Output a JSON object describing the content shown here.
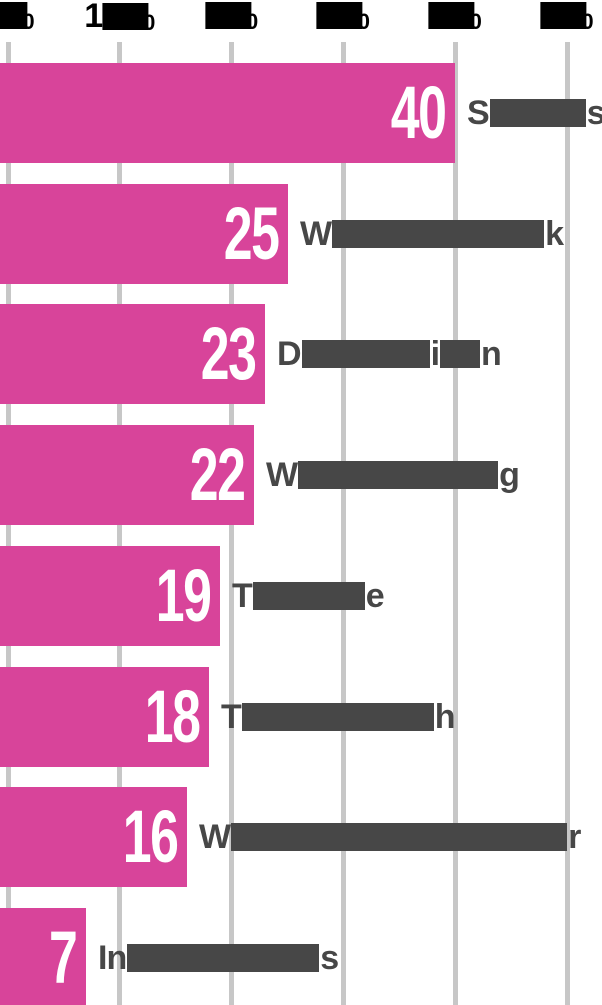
{
  "chart_data": {
    "type": "bar",
    "orientation": "horizontal",
    "grid": true,
    "legend": false,
    "x_axis": {
      "range": [
        0,
        50
      ],
      "ticks": [
        0,
        10,
        20,
        30,
        40,
        50
      ],
      "tick_label_fragments": [
        {
          "pre": "",
          "box": true,
          "suf": "0"
        },
        {
          "pre": "1",
          "box": true,
          "suf": "0"
        },
        {
          "pre": "",
          "box": true,
          "suf": "0"
        },
        {
          "pre": "",
          "box": true,
          "suf": "0"
        },
        {
          "pre": "",
          "box": true,
          "suf": "0"
        },
        {
          "pre": "",
          "box": true,
          "suf": "0"
        }
      ]
    },
    "bars": [
      {
        "value": 40,
        "label_segments": [
          {
            "text": "S"
          },
          {
            "box": 96
          },
          {
            "text": "s"
          }
        ]
      },
      {
        "value": 25,
        "label_segments": [
          {
            "text": "W"
          },
          {
            "box": 212
          },
          {
            "text": "k"
          }
        ]
      },
      {
        "value": 23,
        "label_segments": [
          {
            "text": "D"
          },
          {
            "box": 128
          },
          {
            "text": "i"
          },
          {
            "box": 40
          },
          {
            "text": "n"
          }
        ]
      },
      {
        "value": 22,
        "label_segments": [
          {
            "text": "W"
          },
          {
            "box": 200
          },
          {
            "text": "g"
          }
        ]
      },
      {
        "value": 19,
        "label_segments": [
          {
            "text": "T"
          },
          {
            "box": 112
          },
          {
            "text": "e"
          }
        ]
      },
      {
        "value": 18,
        "label_segments": [
          {
            "text": "T"
          },
          {
            "box": 192
          },
          {
            "text": "h"
          }
        ]
      },
      {
        "value": 16,
        "label_segments": [
          {
            "text": "W"
          },
          {
            "box": 336
          },
          {
            "text": "r"
          }
        ]
      },
      {
        "value": 7,
        "label_segments": [
          {
            "text": "In"
          },
          {
            "box": 192
          },
          {
            "text": "s"
          }
        ]
      }
    ]
  },
  "style": {
    "bar_color": "#d8449a",
    "value_text_color": "#ffffff",
    "label_text_color": "#474747",
    "label_box_color": "#474747",
    "gridline_color": "#c7c7c7",
    "tick_text_color": "#000000",
    "tick_box_color": "#000000",
    "background": "#ffffff"
  }
}
